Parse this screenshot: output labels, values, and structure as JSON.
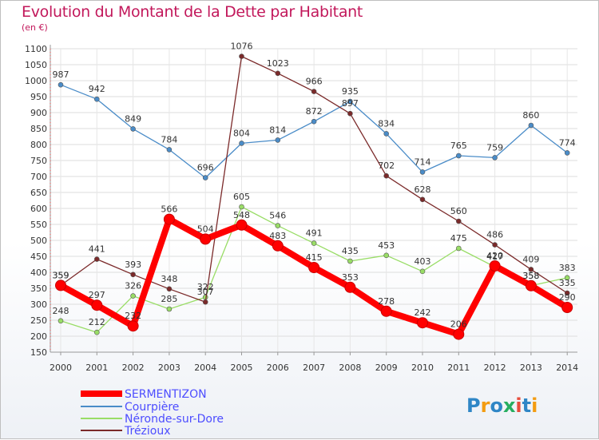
{
  "title": "Evolution du Montant de la Dette par Habitant",
  "subtitle": "(en €)",
  "brand": "Proxiti",
  "chart_data": {
    "type": "line",
    "ylim": [
      150,
      1100
    ],
    "y_ticks": [
      150,
      200,
      250,
      300,
      350,
      400,
      450,
      500,
      550,
      600,
      650,
      700,
      750,
      800,
      850,
      900,
      950,
      1000,
      1050,
      1100
    ],
    "categories": [
      "2000",
      "2001",
      "2002",
      "2003",
      "2004",
      "2005",
      "2006",
      "2007",
      "2008",
      "2009",
      "2010",
      "2011",
      "2012",
      "2013",
      "2014"
    ],
    "grid": true,
    "legend_position": "bottom-left",
    "series": [
      {
        "name": "SERMENTIZON",
        "color": "#ff0000",
        "values": [
          359,
          297,
          232,
          566,
          504,
          548,
          483,
          415,
          353,
          278,
          242,
          206,
          420,
          358,
          290
        ]
      },
      {
        "name": "Courpière",
        "color": "#4a8cc8",
        "values": [
          987,
          942,
          849,
          784,
          696,
          804,
          814,
          872,
          935,
          834,
          714,
          765,
          759,
          860,
          774
        ]
      },
      {
        "name": "Néronde-sur-Dore",
        "color": "#99dd66",
        "values": [
          248,
          212,
          326,
          285,
          322,
          605,
          546,
          491,
          435,
          453,
          403,
          475,
          417,
          358,
          383
        ]
      },
      {
        "name": "Trézioux",
        "color": "#7b2a2a",
        "values": [
          359,
          441,
          393,
          348,
          307,
          1076,
          1023,
          966,
          897,
          702,
          628,
          560,
          486,
          409,
          335
        ]
      }
    ]
  }
}
